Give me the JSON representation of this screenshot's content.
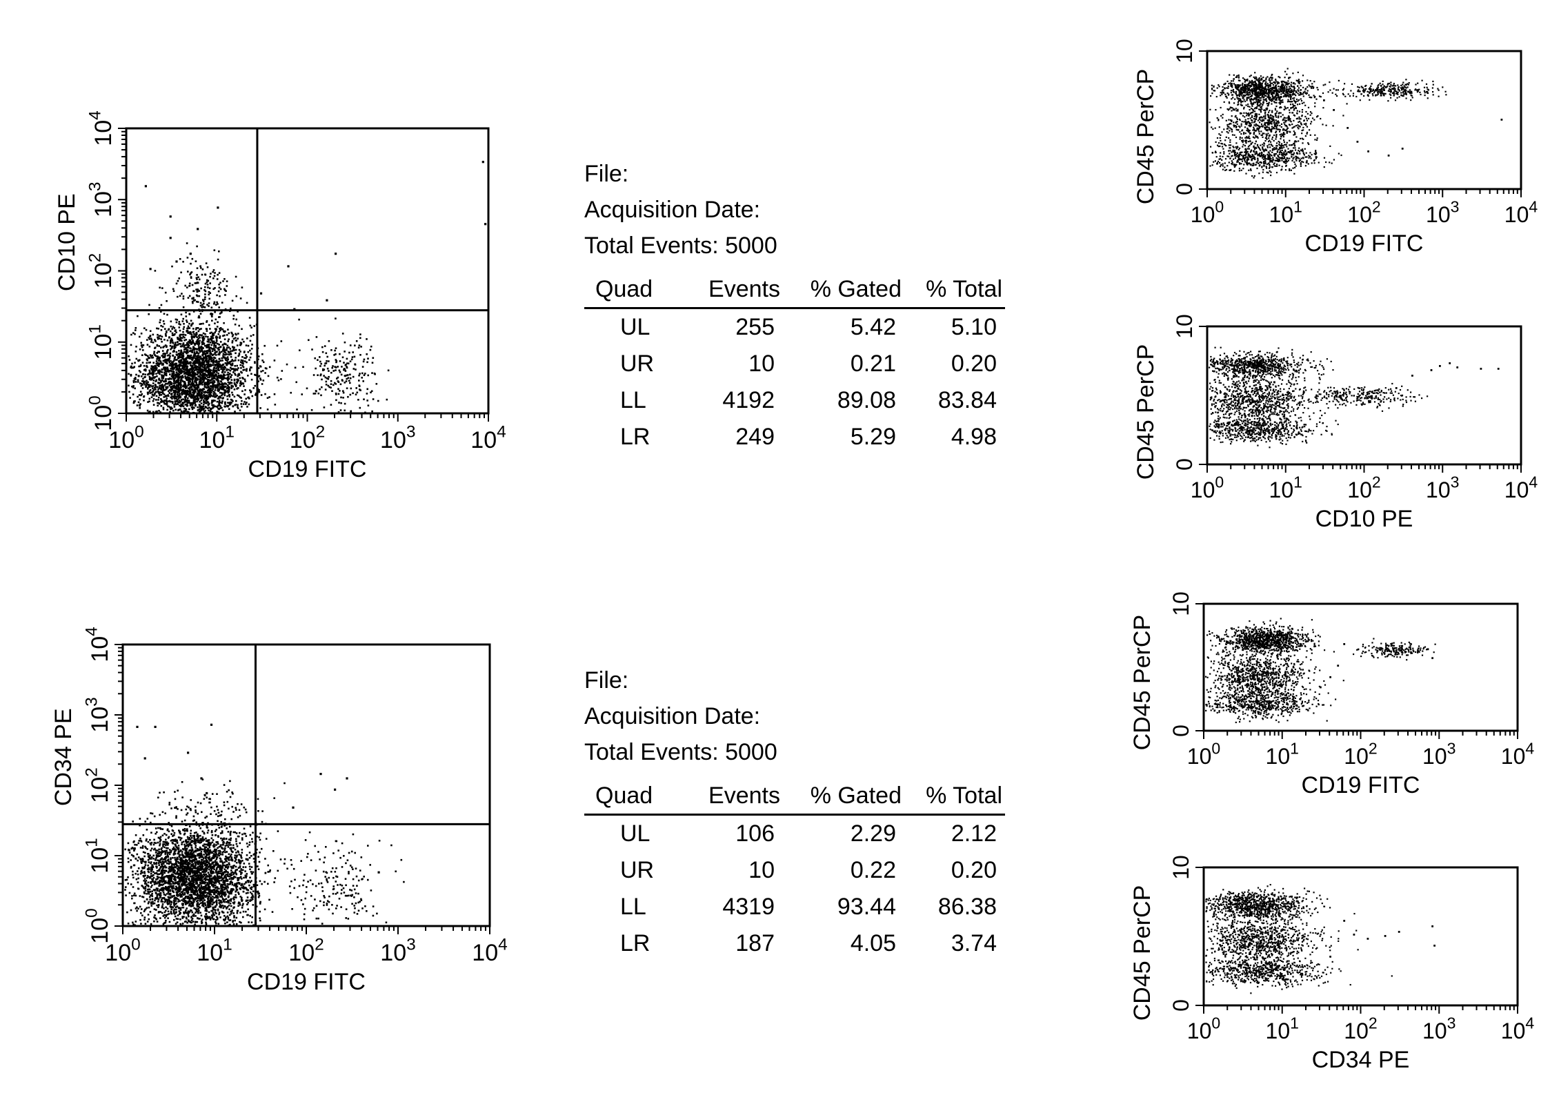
{
  "chart_data": [
    {
      "type": "scatter",
      "id": "quad-top",
      "title": "",
      "xlabel": "CD19 FITC",
      "ylabel": "CD10 PE",
      "x_scale": "log",
      "y_scale": "log",
      "xlim": [
        1,
        10000
      ],
      "ylim": [
        1,
        10000
      ],
      "x_ticks": [
        1,
        10,
        100,
        1000,
        10000
      ],
      "y_ticks": [
        1,
        10,
        100,
        1000,
        10000
      ],
      "quadrant_divider": {
        "x": 28,
        "y": 28
      },
      "clusters": [
        {
          "name": "",
          "center": [
            5.5,
            3.5
          ],
          "spread_decades": [
            0.32,
            0.36
          ],
          "count": 3100
        },
        {
          "name": "",
          "center": [
            6.5,
            55
          ],
          "spread_decades": [
            0.17,
            0.22
          ],
          "count": 170
        },
        {
          "name": "",
          "center": [
            230,
            3.5
          ],
          "spread_decades": [
            0.2,
            0.3
          ],
          "count": 230
        }
      ],
      "outliers": [
        [
          1.6,
          1600
        ],
        [
          6,
          400
        ],
        [
          3,
          300
        ],
        [
          10,
          800
        ],
        [
          5,
          180
        ],
        [
          3.5,
          140
        ],
        [
          30,
          50
        ],
        [
          60,
          120
        ],
        [
          200,
          180
        ],
        [
          9000,
          470
        ],
        [
          8500,
          3500
        ],
        [
          1.8,
          110
        ],
        [
          3,
          600
        ],
        [
          160,
          40
        ],
        [
          70,
          30
        ]
      ]
    },
    {
      "type": "scatter",
      "id": "quad-bottom",
      "title": "",
      "xlabel": "CD19 FITC",
      "ylabel": "CD34 PE",
      "x_scale": "log",
      "y_scale": "log",
      "xlim": [
        1,
        10000
      ],
      "ylim": [
        1,
        10000
      ],
      "x_ticks": [
        1,
        10,
        100,
        1000,
        10000
      ],
      "y_ticks": [
        1,
        10,
        100,
        1000,
        10000
      ],
      "quadrant_divider": {
        "x": 28,
        "y": 28
      },
      "clusters": [
        {
          "name": "",
          "center": [
            6,
            5
          ],
          "spread_decades": [
            0.33,
            0.36
          ],
          "count": 3200
        },
        {
          "name": "",
          "center": [
            8,
            45
          ],
          "spread_decades": [
            0.3,
            0.2
          ],
          "count": 90
        },
        {
          "name": "",
          "center": [
            220,
            4
          ],
          "spread_decades": [
            0.22,
            0.32
          ],
          "count": 170
        }
      ],
      "outliers": [
        [
          1.4,
          700
        ],
        [
          2.2,
          700
        ],
        [
          9,
          750
        ],
        [
          7,
          130
        ],
        [
          8,
          80
        ],
        [
          70,
          50
        ],
        [
          140,
          150
        ],
        [
          270,
          130
        ],
        [
          200,
          90
        ],
        [
          600,
          6
        ],
        [
          1.7,
          250
        ],
        [
          5,
          300
        ]
      ]
    },
    {
      "type": "scatter",
      "id": "side-1",
      "title": "",
      "xlabel": "CD19 FITC",
      "ylabel": "CD45 PerCP",
      "x_scale": "log",
      "y_scale": "linear",
      "xlim": [
        1,
        10000
      ],
      "ylim": [
        0,
        10
      ],
      "x_ticks": [
        1,
        10,
        100,
        1000,
        10000
      ],
      "y_ticks": [
        0,
        10
      ],
      "clusters": [
        {
          "name": "",
          "center": [
            5.5,
            7.2
          ],
          "spread": [
            0.3,
            0.5
          ],
          "count": 900
        },
        {
          "name": "",
          "center": [
            5.5,
            4.7
          ],
          "spread": [
            0.32,
            0.9
          ],
          "count": 700
        },
        {
          "name": "",
          "center": [
            5,
            2.4
          ],
          "spread": [
            0.35,
            0.5
          ],
          "count": 600
        },
        {
          "name": "",
          "center": [
            220,
            7.2
          ],
          "spread": [
            0.28,
            0.3
          ],
          "count": 280
        }
      ],
      "outliers": [
        [
          60,
          4.5
        ],
        [
          80,
          3.5
        ],
        [
          110,
          2.8
        ],
        [
          200,
          2.5
        ],
        [
          5500,
          5.1
        ],
        [
          40,
          5.8
        ],
        [
          30,
          6.5
        ],
        [
          18,
          2
        ],
        [
          300,
          3
        ]
      ]
    },
    {
      "type": "scatter",
      "id": "side-2",
      "title": "",
      "xlabel": "CD10 PE",
      "ylabel": "CD45 PerCP",
      "x_scale": "log",
      "y_scale": "linear",
      "xlim": [
        1,
        10000
      ],
      "ylim": [
        0,
        10
      ],
      "x_ticks": [
        1,
        10,
        100,
        1000,
        10000
      ],
      "y_ticks": [
        0,
        10
      ],
      "clusters": [
        {
          "name": "",
          "center": [
            4,
            7.2
          ],
          "spread": [
            0.33,
            0.45
          ],
          "count": 750
        },
        {
          "name": "",
          "center": [
            4,
            4.7
          ],
          "spread": [
            0.36,
            0.8
          ],
          "count": 800
        },
        {
          "name": "",
          "center": [
            4,
            2.6
          ],
          "spread": [
            0.38,
            0.45
          ],
          "count": 600
        },
        {
          "name": "",
          "center": [
            90,
            5
          ],
          "spread": [
            0.35,
            0.35
          ],
          "count": 260
        }
      ],
      "outliers": [
        [
          400,
          6.5
        ],
        [
          700,
          6.9
        ],
        [
          1200,
          7.4
        ],
        [
          1500,
          7.1
        ],
        [
          3000,
          7
        ],
        [
          5000,
          7
        ],
        [
          900,
          7.2
        ],
        [
          250,
          5.6
        ]
      ]
    },
    {
      "type": "scatter",
      "id": "side-3",
      "title": "",
      "xlabel": "CD19 FITC",
      "ylabel": "CD45 PerCP",
      "x_scale": "log",
      "y_scale": "linear",
      "xlim": [
        1,
        10000
      ],
      "ylim": [
        0,
        10
      ],
      "x_ticks": [
        1,
        10,
        100,
        1000,
        10000
      ],
      "y_ticks": [
        0,
        10
      ],
      "clusters": [
        {
          "name": "",
          "center": [
            6,
            7.1
          ],
          "spread": [
            0.28,
            0.55
          ],
          "count": 950
        },
        {
          "name": "",
          "center": [
            5,
            4.3
          ],
          "spread": [
            0.32,
            0.9
          ],
          "count": 800
        },
        {
          "name": "",
          "center": [
            5,
            2.2
          ],
          "spread": [
            0.35,
            0.5
          ],
          "count": 550
        },
        {
          "name": "",
          "center": [
            260,
            6.4
          ],
          "spread": [
            0.2,
            0.28
          ],
          "count": 190
        }
      ],
      "outliers": [
        [
          50,
          5.2
        ],
        [
          40,
          4.3
        ],
        [
          700,
          6.5
        ],
        [
          800,
          5.8
        ],
        [
          30,
          3.5
        ],
        [
          60,
          6.9
        ]
      ]
    },
    {
      "type": "scatter",
      "id": "side-4",
      "title": "",
      "xlabel": "CD34 PE",
      "ylabel": "CD45 PerCP",
      "x_scale": "log",
      "y_scale": "linear",
      "xlim": [
        1,
        10000
      ],
      "ylim": [
        0,
        10
      ],
      "x_ticks": [
        1,
        10,
        100,
        1000,
        10000
      ],
      "y_ticks": [
        0,
        10
      ],
      "clusters": [
        {
          "name": "",
          "center": [
            4.5,
            7.3
          ],
          "spread": [
            0.33,
            0.5
          ],
          "count": 850
        },
        {
          "name": "",
          "center": [
            5,
            4.8
          ],
          "spread": [
            0.36,
            0.8
          ],
          "count": 850
        },
        {
          "name": "",
          "center": [
            5,
            2.5
          ],
          "spread": [
            0.4,
            0.5
          ],
          "count": 600
        }
      ],
      "outliers": [
        [
          80,
          5.2
        ],
        [
          120,
          4.9
        ],
        [
          200,
          5.1
        ],
        [
          300,
          5.4
        ],
        [
          800,
          5.8
        ],
        [
          850,
          4.4
        ],
        [
          60,
          6.2
        ],
        [
          40,
          3.6
        ]
      ]
    }
  ],
  "stats_panels": [
    {
      "file_label": "File:",
      "acquisition_label": "Acquisition Date:",
      "total_events_label": "Total Events:",
      "total_events_value": "5000",
      "columns": [
        "Quad",
        "Events",
        "% Gated",
        "% Total"
      ],
      "rows": [
        [
          "UL",
          "255",
          "5.42",
          "5.10"
        ],
        [
          "UR",
          "10",
          "0.21",
          "0.20"
        ],
        [
          "LL",
          "4192",
          "89.08",
          "83.84"
        ],
        [
          "LR",
          "249",
          "5.29",
          "4.98"
        ]
      ]
    },
    {
      "file_label": "File:",
      "acquisition_label": "Acquisition Date:",
      "total_events_label": "Total Events:",
      "total_events_value": "5000",
      "columns": [
        "Quad",
        "Events",
        "% Gated",
        "% Total"
      ],
      "rows": [
        [
          "UL",
          "106",
          "2.29",
          "2.12"
        ],
        [
          "UR",
          "10",
          "0.22",
          "0.20"
        ],
        [
          "LL",
          "4319",
          "93.44",
          "86.38"
        ],
        [
          "LR",
          "187",
          "4.05",
          "3.74"
        ]
      ]
    }
  ]
}
